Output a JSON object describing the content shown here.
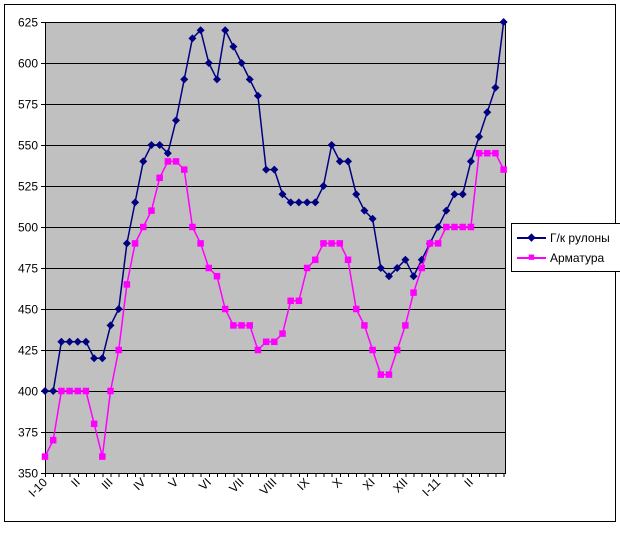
{
  "chart_data": {
    "type": "line",
    "title": "",
    "x_labels": [
      "I-10",
      "II",
      "III",
      "IV",
      "V",
      "VI",
      "VII",
      "VIII",
      "IX",
      "X",
      "XI",
      "XII",
      "I-11",
      "II"
    ],
    "x_label_point_indices": [
      0,
      4,
      8,
      12,
      16,
      20,
      24,
      28,
      32,
      36,
      40,
      44,
      48,
      52
    ],
    "n_points": 57,
    "ylim": [
      350,
      625
    ],
    "ytick_step": 25,
    "grid": true,
    "plot_bg_color": "#c0c0c0",
    "background_color": "#ffffff",
    "legend_position": "right",
    "series": [
      {
        "name": "Г/к рулоны",
        "color": "#000080",
        "marker": "diamond",
        "values": [
          400,
          400,
          430,
          430,
          430,
          430,
          420,
          420,
          440,
          450,
          490,
          515,
          540,
          550,
          550,
          545,
          565,
          590,
          615,
          620,
          600,
          590,
          620,
          610,
          600,
          590,
          580,
          535,
          535,
          520,
          515,
          515,
          515,
          515,
          525,
          550,
          540,
          540,
          520,
          510,
          505,
          475,
          470,
          475,
          480,
          470,
          480,
          490,
          500,
          510,
          520,
          520,
          540,
          555,
          570,
          585,
          625
        ]
      },
      {
        "name": "Арматура",
        "color": "#ff00ff",
        "marker": "square",
        "values": [
          360,
          370,
          400,
          400,
          400,
          400,
          380,
          360,
          400,
          425,
          465,
          490,
          500,
          510,
          530,
          540,
          540,
          535,
          500,
          490,
          475,
          470,
          450,
          440,
          440,
          440,
          425,
          430,
          430,
          435,
          455,
          455,
          475,
          480,
          490,
          490,
          490,
          480,
          450,
          440,
          425,
          410,
          410,
          425,
          440,
          460,
          475,
          490,
          490,
          500,
          500,
          500,
          500,
          545,
          545,
          545,
          535
        ]
      }
    ],
    "y_tick_labels": [
      "350",
      "375",
      "400",
      "425",
      "450",
      "475",
      "500",
      "525",
      "550",
      "575",
      "600",
      "625"
    ]
  }
}
